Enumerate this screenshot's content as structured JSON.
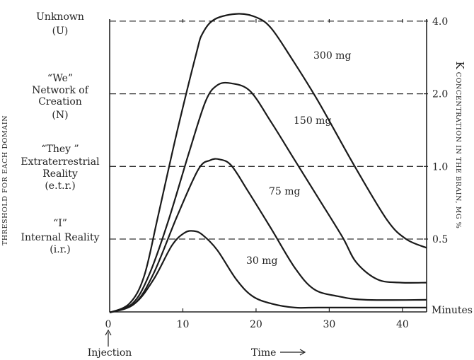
{
  "chart_data": {
    "type": "line",
    "title": "",
    "xlabel": "Time",
    "x_unit_label": "Minutes",
    "ylabel_left": "THRESHOLD FOR EACH DOMAIN",
    "ylabel_right_prefix": "K",
    "ylabel_right": "CONCENTRATION IN THE BRAIN, MG %",
    "y_scale": "log2",
    "xlim": [
      0,
      43.3
    ],
    "ylim": [
      0.25,
      4.3
    ],
    "x_ticks": [
      0,
      10,
      20,
      30,
      40
    ],
    "x_tick_labels": [
      "0",
      "10",
      "20",
      "30",
      "40"
    ],
    "y_ticks": [
      4.0,
      2.0,
      1.0,
      0.5
    ],
    "y_tick_labels": [
      "4.0",
      "2.0",
      "1.0",
      "0.5"
    ],
    "injection_label": "Injection",
    "injection_at": 0,
    "thresholds": [
      {
        "value": 4.0,
        "lines": [
          "Unknown",
          "(U)"
        ]
      },
      {
        "value": 2.0,
        "lines": [
          "“We”",
          "Network of",
          "Creation",
          "(N)"
        ]
      },
      {
        "value": 1.0,
        "lines": [
          "“They ”",
          "Extraterrestrial",
          "Reality",
          "(e.t.r.)"
        ]
      },
      {
        "value": 0.5,
        "lines": [
          "“I”",
          "Internal Reality",
          "(i.r.)"
        ]
      }
    ],
    "series": [
      {
        "name": "300 mg",
        "x": [
          0,
          2.7,
          4.7,
          6.6,
          9.2,
          11.8,
          12.7,
          14.4,
          17.6,
          20.2,
          22.1,
          24.7,
          28.5,
          33.4,
          37.9,
          40.5,
          43.3
        ],
        "y": [
          0.248,
          0.27,
          0.35,
          0.62,
          1.39,
          2.91,
          3.56,
          4.08,
          4.29,
          4.13,
          3.73,
          2.85,
          1.86,
          1.01,
          0.6,
          0.5,
          0.46
        ]
      },
      {
        "name": "150 mg",
        "x": [
          0,
          3.1,
          5.3,
          7.9,
          10.8,
          13.1,
          14.7,
          16.6,
          19.2,
          22.1,
          25.3,
          28.5,
          31.8,
          33.7,
          36.6,
          39.8,
          43.3
        ],
        "y": [
          0.248,
          0.27,
          0.35,
          0.58,
          1.13,
          1.86,
          2.17,
          2.21,
          2.05,
          1.52,
          1.06,
          0.74,
          0.51,
          0.4,
          0.34,
          0.33,
          0.33
        ]
      },
      {
        "name": "75 mg",
        "x": [
          0,
          3.4,
          6.0,
          9.2,
          12.1,
          13.7,
          15.0,
          16.6,
          18.9,
          22.1,
          25.3,
          27.9,
          31.1,
          35.0,
          43.3
        ],
        "y": [
          0.248,
          0.27,
          0.36,
          0.62,
          0.97,
          1.06,
          1.07,
          1.01,
          0.79,
          0.55,
          0.38,
          0.31,
          0.29,
          0.28,
          0.28
        ]
      },
      {
        "name": "30 mg",
        "x": [
          0,
          3.4,
          6.0,
          8.5,
          10.2,
          11.5,
          12.7,
          14.7,
          17.3,
          19.5,
          22.1,
          25.3,
          28.5,
          43.3
        ],
        "y": [
          0.248,
          0.27,
          0.34,
          0.47,
          0.53,
          0.54,
          0.52,
          0.45,
          0.34,
          0.29,
          0.27,
          0.26,
          0.26,
          0.26
        ]
      }
    ],
    "grid": "dashed horizontal lines at y ticks",
    "legend": "inline labels beside curves"
  }
}
